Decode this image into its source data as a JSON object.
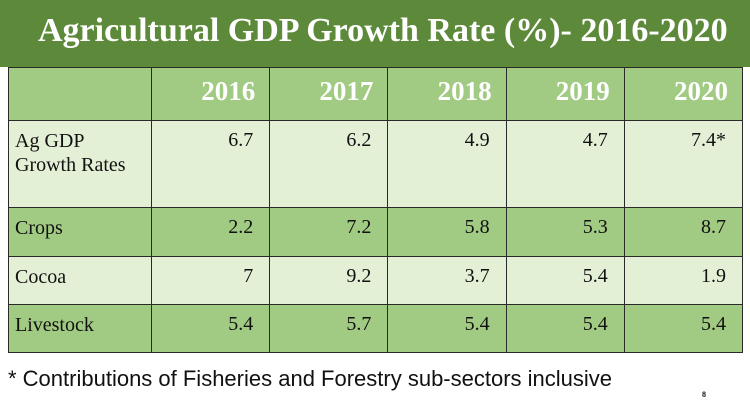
{
  "title": "Agricultural GDP Growth Rate (%)- 2016-2020",
  "table": {
    "years": [
      "2016",
      "2017",
      "2018",
      "2019",
      "2020"
    ],
    "rows": [
      {
        "label": "Ag GDP Growth Rates",
        "values": [
          "6.7",
          "6.2",
          "4.9",
          "4.7",
          "7.4*"
        ]
      },
      {
        "label": "Crops",
        "values": [
          "2.2",
          "7.2",
          "5.8",
          "5.3",
          "8.7"
        ]
      },
      {
        "label": "Cocoa",
        "values": [
          "7",
          "9.2",
          "3.7",
          "5.4",
          "1.9"
        ]
      },
      {
        "label": "Livestock",
        "values": [
          "5.4",
          "5.7",
          "5.4",
          "5.4",
          "5.4"
        ]
      }
    ]
  },
  "footnote": "* Contributions of Fisheries and Forestry sub-sectors inclusive",
  "page_number": "8",
  "colors": {
    "title_bg": "#5d8a3a",
    "dark_row": "#a1ca82",
    "light_row": "#e3f0d6"
  }
}
